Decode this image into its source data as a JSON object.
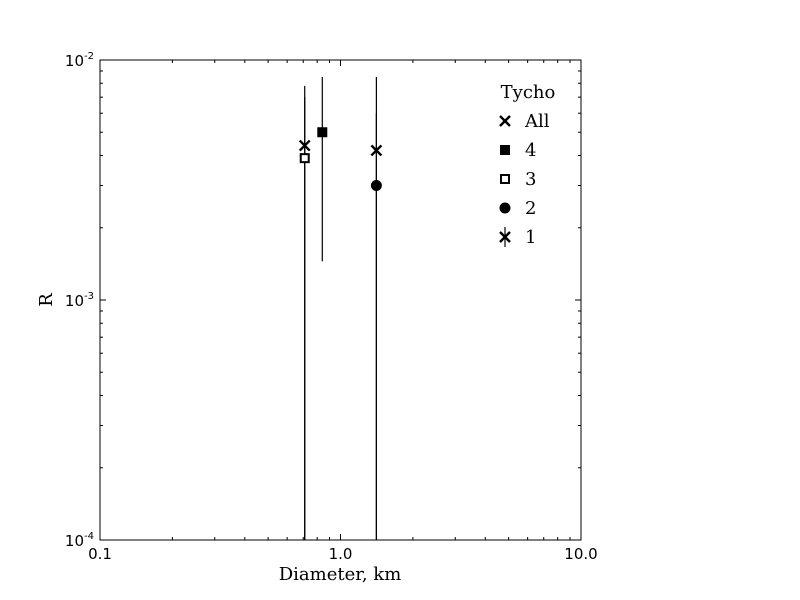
{
  "chart_data": {
    "type": "scatter",
    "xscale": "log",
    "yscale": "log",
    "xlim": [
      0.1,
      10.0
    ],
    "ylim": [
      0.0001,
      0.01
    ],
    "xlabel": "Diameter, km",
    "ylabel": "R",
    "x_tick_labels": [
      {
        "value": 0.1,
        "label": "0.1"
      },
      {
        "value": 1.0,
        "label": "1.0"
      },
      {
        "value": 10.0,
        "label": "10.0"
      }
    ],
    "y_tick_labels": [
      {
        "value": 0.0001,
        "base": "10",
        "exp": "-4"
      },
      {
        "value": 0.001,
        "base": "10",
        "exp": "-3"
      },
      {
        "value": 0.01,
        "base": "10",
        "exp": "-2"
      }
    ],
    "legend": {
      "title": "Tycho",
      "placement": "top-right"
    },
    "series": [
      {
        "name": "All",
        "marker": "x",
        "points": [
          {
            "x": 0.71,
            "y": 0.0044,
            "ylow": 0.0001,
            "yhigh": 0.0078
          },
          {
            "x": 1.41,
            "y": 0.0042,
            "ylow": 0.0001,
            "yhigh": 0.0085
          }
        ]
      },
      {
        "name": "4",
        "marker": "filled-square",
        "points": [
          {
            "x": 0.84,
            "y": 0.005,
            "ylow": 0.00145,
            "yhigh": 0.0085
          }
        ]
      },
      {
        "name": "3",
        "marker": "open-square",
        "points": [
          {
            "x": 0.71,
            "y": 0.0039,
            "ylow": 0.0001,
            "yhigh": 0.007
          }
        ]
      },
      {
        "name": "2",
        "marker": "filled-circle",
        "points": [
          {
            "x": 1.41,
            "y": 0.003,
            "ylow": 0.0001,
            "yhigh": 0.006
          }
        ]
      },
      {
        "name": "1",
        "marker": "x-errorbar",
        "points": []
      }
    ]
  }
}
